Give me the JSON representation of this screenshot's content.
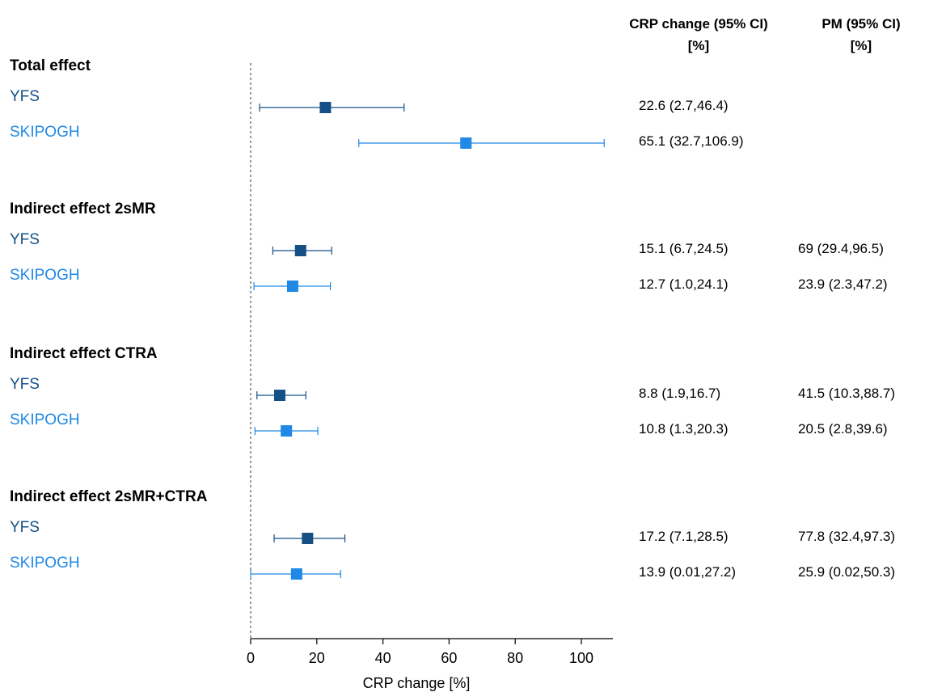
{
  "chart_data": {
    "type": "forest",
    "xlabel": "CRP change [%]",
    "xlim": [
      0,
      110
    ],
    "xticks": [
      0,
      20,
      40,
      60,
      80,
      100
    ],
    "reference_line": 0,
    "columns": {
      "crp": [
        "CRP change (95% CI)",
        "[%]"
      ],
      "pm": [
        "PM (95% CI)",
        "[%]"
      ]
    },
    "cohort_colors": {
      "YFS": "#144f86",
      "SKIPOGH": "#2089e6"
    },
    "groups": [
      {
        "title": "Total effect",
        "rows": [
          {
            "cohort": "YFS",
            "est": 22.6,
            "lo": 2.7,
            "hi": 46.4,
            "crp_text": "22.6 (2.7,46.4)",
            "pm_text": ""
          },
          {
            "cohort": "SKIPOGH",
            "est": 65.1,
            "lo": 32.7,
            "hi": 106.9,
            "crp_text": "65.1 (32.7,106.9)",
            "pm_text": ""
          }
        ]
      },
      {
        "title": "Indirect effect 2sMR",
        "rows": [
          {
            "cohort": "YFS",
            "est": 15.1,
            "lo": 6.7,
            "hi": 24.5,
            "crp_text": "15.1 (6.7,24.5)",
            "pm_text": "69 (29.4,96.5)"
          },
          {
            "cohort": "SKIPOGH",
            "est": 12.7,
            "lo": 1.0,
            "hi": 24.1,
            "crp_text": "12.7 (1.0,24.1)",
            "pm_text": "23.9 (2.3,47.2)"
          }
        ]
      },
      {
        "title": "Indirect effect CTRA",
        "rows": [
          {
            "cohort": "YFS",
            "est": 8.8,
            "lo": 1.9,
            "hi": 16.7,
            "crp_text": "8.8 (1.9,16.7)",
            "pm_text": "41.5 (10.3,88.7)"
          },
          {
            "cohort": "SKIPOGH",
            "est": 10.8,
            "lo": 1.3,
            "hi": 20.3,
            "crp_text": "10.8 (1.3,20.3)",
            "pm_text": "20.5 (2.8,39.6)"
          }
        ]
      },
      {
        "title": "Indirect effect 2sMR+CTRA",
        "rows": [
          {
            "cohort": "YFS",
            "est": 17.2,
            "lo": 7.1,
            "hi": 28.5,
            "crp_text": "17.2 (7.1,28.5)",
            "pm_text": "77.8 (32.4,97.3)"
          },
          {
            "cohort": "SKIPOGH",
            "est": 13.9,
            "lo": 0.01,
            "hi": 27.2,
            "crp_text": "13.9 (0.01,27.2)",
            "pm_text": "25.9 (0.02,50.3)"
          }
        ]
      }
    ]
  }
}
